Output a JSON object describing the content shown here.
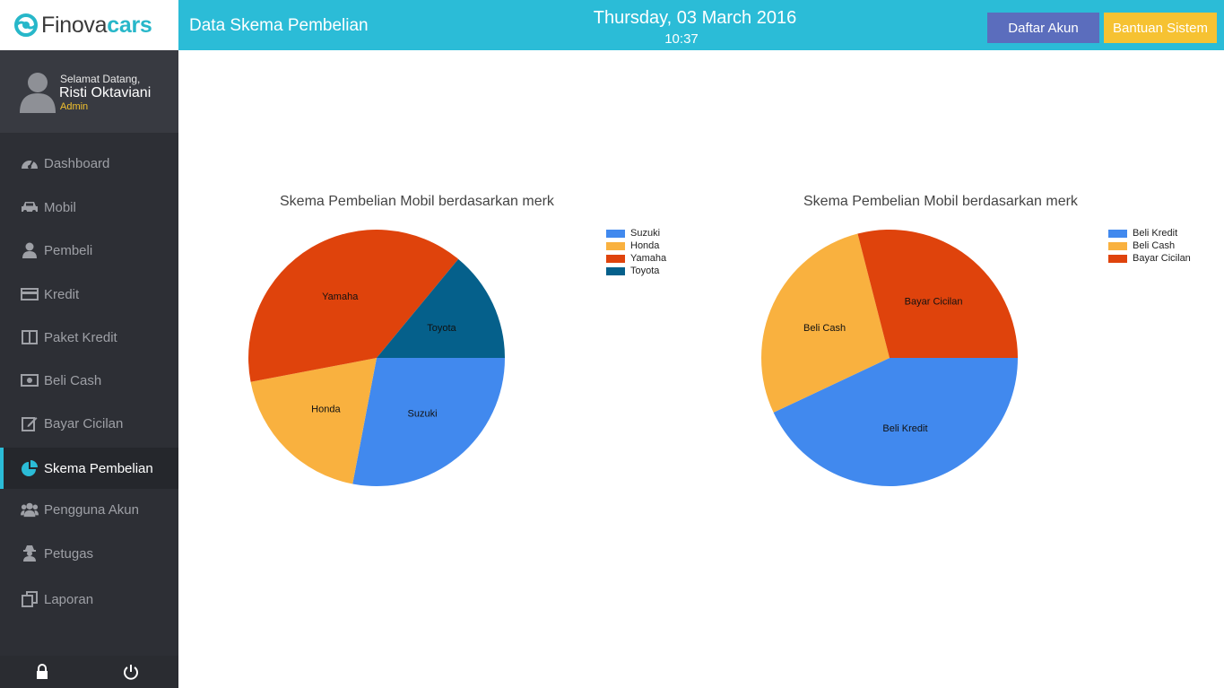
{
  "brand": {
    "name_part1": "Finova",
    "name_part2": "cars"
  },
  "header": {
    "title": "Data Skema Pembelian",
    "date": "Thursday, 03 March 2016",
    "time": "10:37",
    "account_button": "Daftar Akun",
    "help_button": "Bantuan Sistem"
  },
  "user": {
    "greeting": "Selamat Datang,",
    "name": "Risti Oktaviani",
    "role": "Admin"
  },
  "sidebar": {
    "items": [
      {
        "label": "Dashboard",
        "icon": "dashboard-icon"
      },
      {
        "label": "Mobil",
        "icon": "car-icon"
      },
      {
        "label": "Pembeli",
        "icon": "user-icon"
      },
      {
        "label": "Kredit",
        "icon": "credit-card-icon"
      },
      {
        "label": "Paket Kredit",
        "icon": "columns-icon"
      },
      {
        "label": "Beli Cash",
        "icon": "money-icon"
      },
      {
        "label": "Bayar Cicilan",
        "icon": "edit-icon"
      },
      {
        "label": "Skema Pembelian",
        "icon": "pie-chart-icon",
        "active": true
      },
      {
        "label": "Pengguna Akun",
        "icon": "users-icon"
      },
      {
        "label": "Petugas",
        "icon": "user-secret-icon"
      },
      {
        "label": "Laporan",
        "icon": "copy-icon"
      }
    ],
    "footer": [
      "lock-icon",
      "power-icon"
    ]
  },
  "colors": {
    "accent": "#2bbcd7",
    "blue": "#4189ee",
    "orange": "#f9b13f",
    "red": "#df430c",
    "teal": "#05608b"
  },
  "chart_data": [
    {
      "type": "pie",
      "title": "Skema Pembelian Mobil berdasarkan merk",
      "labels": [
        "Suzuki",
        "Honda",
        "Yamaha",
        "Toyota"
      ],
      "values": [
        28,
        19,
        39,
        14
      ],
      "colors": [
        "#4189ee",
        "#f9b13f",
        "#df430c",
        "#05608b"
      ],
      "legend": "right"
    },
    {
      "type": "pie",
      "title": "Skema Pembelian Mobil berdasarkan merk",
      "labels": [
        "Beli Kredit",
        "Beli Cash",
        "Bayar Cicilan"
      ],
      "values": [
        43,
        28,
        29
      ],
      "colors": [
        "#4189ee",
        "#f9b13f",
        "#df430c"
      ],
      "legend": "right"
    }
  ]
}
